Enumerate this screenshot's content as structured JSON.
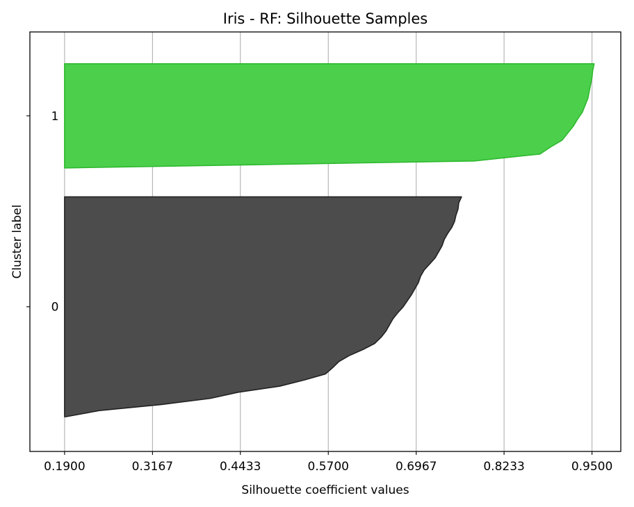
{
  "chart_data": {
    "type": "silhouette",
    "title": "Iris - RF: Silhouette Samples",
    "xlabel": "Silhouette coefficient values",
    "ylabel": "Cluster label",
    "xticks": [
      "0.1900",
      "0.3167",
      "0.4433",
      "0.5700",
      "0.6967",
      "0.8233",
      "0.9500"
    ],
    "xtick_values": [
      0.19,
      0.3167,
      0.4433,
      0.57,
      0.6967,
      0.8233,
      0.95
    ],
    "xlim": [
      0.14,
      0.9915
    ],
    "ylim": [
      0,
      145
    ],
    "grid_x": true,
    "clusters": [
      {
        "label": "0",
        "color": "#4c4c4c",
        "edge": "#222222",
        "y_range": [
          12,
          88
        ],
        "silhouette_values": [
          0.762,
          0.758,
          0.757,
          0.754,
          0.752,
          0.748,
          0.742,
          0.737,
          0.734,
          0.729,
          0.724,
          0.716,
          0.708,
          0.703,
          0.7,
          0.695,
          0.69,
          0.684,
          0.678,
          0.67,
          0.663,
          0.658,
          0.653,
          0.646,
          0.637,
          0.62,
          0.6,
          0.585,
          0.576,
          0.566,
          0.535,
          0.5,
          0.44,
          0.4,
          0.33,
          0.24,
          0.192
        ]
      },
      {
        "label": "1",
        "color": "#4cd04c",
        "edge": "#2eb82e",
        "y_range": [
          98,
          134
        ],
        "silhouette_values": [
          0.953,
          0.951,
          0.95,
          0.948,
          0.946,
          0.944,
          0.94,
          0.936,
          0.929,
          0.923,
          0.915,
          0.907,
          0.89,
          0.875,
          0.78,
          0.192
        ]
      }
    ]
  }
}
